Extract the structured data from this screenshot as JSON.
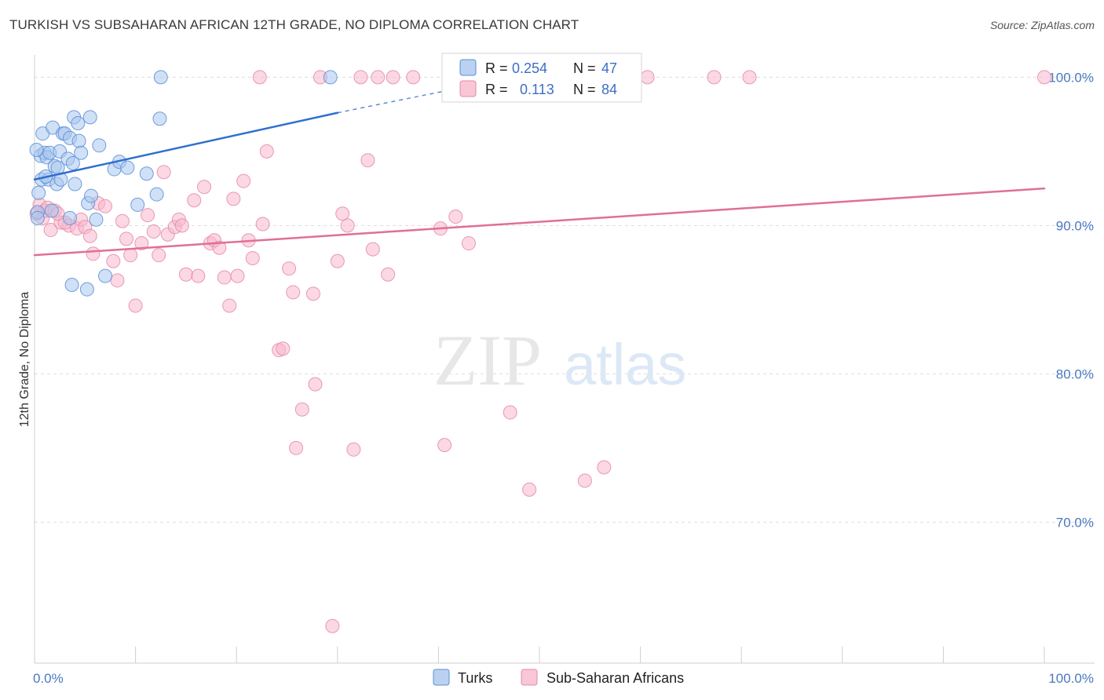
{
  "title": "TURKISH VS SUBSAHARAN AFRICAN 12TH GRADE, NO DIPLOMA CORRELATION CHART",
  "source": "Source: ZipAtlas.com",
  "watermark": {
    "zip": "ZIP",
    "atlas": "atlas"
  },
  "colors": {
    "turks_fill": "#a9c6ee",
    "turks_stroke": "#5b8fd6",
    "turks_line": "#2f6fcf",
    "ssa_fill": "#f7b8cc",
    "ssa_stroke": "#e58aa8",
    "ssa_line": "#e06f97",
    "tick_text": "#4a78c0",
    "grid": "#dddddd"
  },
  "legend": {
    "r_label": "R =",
    "n_label": "N =",
    "rows": [
      {
        "series": "turks",
        "r": "0.254",
        "n": "47"
      },
      {
        "series": "ssa",
        "r": "0.113",
        "n": "84"
      }
    ]
  },
  "bottom_legend": [
    "Turks",
    "Sub-Saharan Africans"
  ],
  "chart_data": {
    "type": "scatter",
    "xlabel": "",
    "ylabel": "12th Grade, No Diploma",
    "xlim": [
      0,
      100
    ],
    "ylim": [
      60.5,
      101.5
    ],
    "x_tick_labels": [
      {
        "value": 0,
        "label": "0.0%"
      },
      {
        "value": 100,
        "label": "100.0%"
      }
    ],
    "y_ticks": [
      {
        "value": 100,
        "label": "100.0%"
      },
      {
        "value": 90,
        "label": "90.0%"
      },
      {
        "value": 80,
        "label": "80.0%"
      },
      {
        "value": 70,
        "label": "70.0%"
      }
    ],
    "x_minor_ticks": [
      0,
      10,
      20,
      30,
      40,
      50,
      60,
      70,
      80,
      90,
      100
    ],
    "grid": "horizontal-dashed",
    "legend_position": "top-center",
    "series": [
      {
        "name": "Turks",
        "key": "turks",
        "trend": {
          "x": [
            0,
            30
          ],
          "y": [
            93.1,
            97.6
          ],
          "dashed_to": [
            42.3,
            99.3
          ]
        },
        "points": [
          [
            0.3,
            90.9
          ],
          [
            0.4,
            92.2
          ],
          [
            0.6,
            94.7
          ],
          [
            0.7,
            93.1
          ],
          [
            0.8,
            96.2
          ],
          [
            1.0,
            94.9
          ],
          [
            1.2,
            94.6
          ],
          [
            1.4,
            93.1
          ],
          [
            1.5,
            94.9
          ],
          [
            1.7,
            91.0
          ],
          [
            1.8,
            96.6
          ],
          [
            2.0,
            94.0
          ],
          [
            2.2,
            92.8
          ],
          [
            2.3,
            93.9
          ],
          [
            2.5,
            95.0
          ],
          [
            2.6,
            93.1
          ],
          [
            2.8,
            96.2
          ],
          [
            3.0,
            96.2
          ],
          [
            3.3,
            94.5
          ],
          [
            3.5,
            95.9
          ],
          [
            3.5,
            90.5
          ],
          [
            3.7,
            86.0
          ],
          [
            3.8,
            94.2
          ],
          [
            3.9,
            97.3
          ],
          [
            4.0,
            92.8
          ],
          [
            4.3,
            96.9
          ],
          [
            4.4,
            95.7
          ],
          [
            4.6,
            94.9
          ],
          [
            5.2,
            85.7
          ],
          [
            5.3,
            91.5
          ],
          [
            5.5,
            97.3
          ],
          [
            5.6,
            92.0
          ],
          [
            6.1,
            90.4
          ],
          [
            6.4,
            95.4
          ],
          [
            7.0,
            86.6
          ],
          [
            7.9,
            93.8
          ],
          [
            8.4,
            94.3
          ],
          [
            9.2,
            93.9
          ],
          [
            10.2,
            91.4
          ],
          [
            11.1,
            93.5
          ],
          [
            12.1,
            92.1
          ],
          [
            12.4,
            97.2
          ],
          [
            12.5,
            100.0
          ],
          [
            29.3,
            100.0
          ],
          [
            0.2,
            95.1
          ],
          [
            1.1,
            93.3
          ],
          [
            0.3,
            90.5
          ]
        ]
      },
      {
        "name": "Sub-Saharan Africans",
        "key": "ssa",
        "trend": {
          "x": [
            0,
            100
          ],
          "y": [
            88.0,
            92.5
          ]
        },
        "points": [
          [
            0.2,
            90.8
          ],
          [
            0.5,
            91.4
          ],
          [
            0.8,
            90.5
          ],
          [
            1.0,
            91.0
          ],
          [
            1.3,
            91.2
          ],
          [
            1.6,
            89.7
          ],
          [
            2.0,
            91.0
          ],
          [
            2.6,
            90.2
          ],
          [
            3.4,
            90.0
          ],
          [
            4.2,
            89.8
          ],
          [
            4.6,
            90.4
          ],
          [
            5.0,
            89.9
          ],
          [
            5.5,
            89.3
          ],
          [
            5.8,
            88.1
          ],
          [
            6.3,
            91.5
          ],
          [
            7.0,
            91.3
          ],
          [
            7.8,
            87.6
          ],
          [
            8.2,
            86.3
          ],
          [
            8.7,
            90.3
          ],
          [
            9.1,
            89.1
          ],
          [
            9.5,
            88.0
          ],
          [
            10.0,
            84.6
          ],
          [
            10.6,
            88.8
          ],
          [
            11.2,
            90.7
          ],
          [
            11.8,
            89.6
          ],
          [
            12.3,
            88.0
          ],
          [
            12.8,
            93.6
          ],
          [
            13.2,
            89.4
          ],
          [
            13.9,
            89.9
          ],
          [
            14.3,
            90.4
          ],
          [
            14.6,
            90.0
          ],
          [
            15.0,
            86.7
          ],
          [
            15.8,
            91.7
          ],
          [
            16.2,
            86.6
          ],
          [
            16.8,
            92.6
          ],
          [
            17.4,
            88.8
          ],
          [
            17.8,
            89.0
          ],
          [
            18.3,
            88.5
          ],
          [
            18.8,
            86.5
          ],
          [
            19.3,
            84.6
          ],
          [
            19.7,
            91.8
          ],
          [
            20.1,
            86.6
          ],
          [
            20.7,
            93.0
          ],
          [
            21.2,
            89.0
          ],
          [
            21.6,
            87.8
          ],
          [
            22.6,
            90.1
          ],
          [
            23.0,
            95.0
          ],
          [
            24.2,
            81.6
          ],
          [
            24.6,
            81.7
          ],
          [
            25.2,
            87.1
          ],
          [
            25.6,
            85.5
          ],
          [
            25.9,
            75.0
          ],
          [
            26.5,
            77.6
          ],
          [
            27.6,
            85.4
          ],
          [
            27.8,
            79.3
          ],
          [
            28.3,
            100.0
          ],
          [
            29.5,
            63.0
          ],
          [
            30.0,
            87.6
          ],
          [
            30.5,
            90.8
          ],
          [
            31.0,
            90.0
          ],
          [
            31.6,
            74.9
          ],
          [
            32.3,
            100.0
          ],
          [
            33.0,
            94.4
          ],
          [
            33.5,
            88.4
          ],
          [
            34.0,
            100.0
          ],
          [
            35.0,
            86.7
          ],
          [
            35.5,
            100.0
          ],
          [
            37.5,
            100.0
          ],
          [
            40.2,
            89.8
          ],
          [
            40.6,
            75.2
          ],
          [
            41.7,
            90.6
          ],
          [
            43.0,
            88.8
          ],
          [
            45.2,
            100.0
          ],
          [
            47.1,
            77.4
          ],
          [
            49.0,
            72.2
          ],
          [
            54.5,
            72.8
          ],
          [
            56.4,
            73.7
          ],
          [
            60.7,
            100.0
          ],
          [
            67.3,
            100.0
          ],
          [
            70.8,
            100.0
          ],
          [
            22.3,
            100.0
          ],
          [
            100.0,
            100.0
          ],
          [
            3.0,
            90.2
          ],
          [
            2.3,
            90.8
          ]
        ]
      }
    ]
  }
}
